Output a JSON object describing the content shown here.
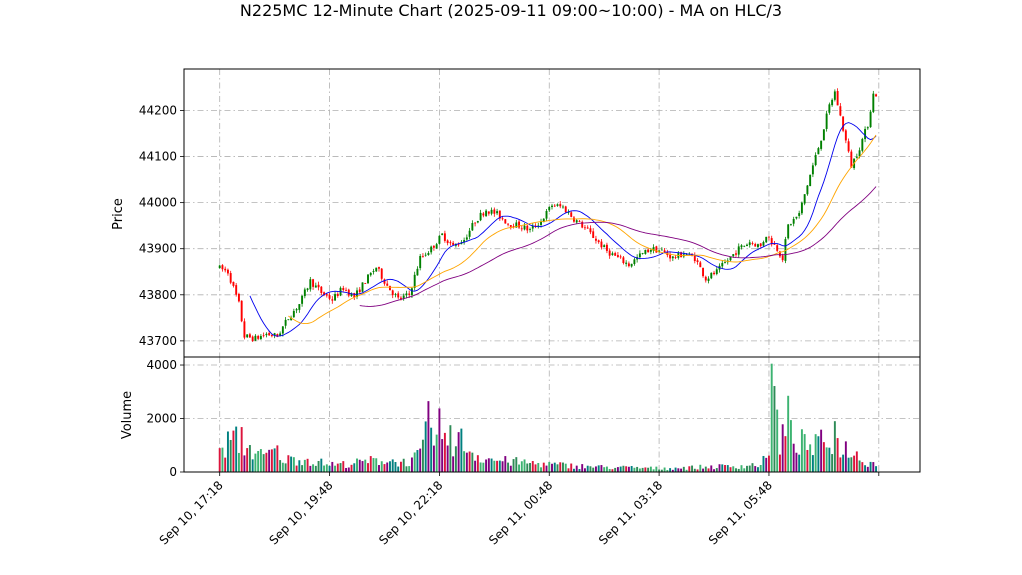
{
  "chart_data": {
    "title": "N225MC 12-Minute Chart (2025-09-11 09:00~10:00) - MA on HLC/3",
    "type": "candlestick",
    "price_panel": {
      "ylabel": "Price",
      "ylim": [
        43665,
        44290
      ],
      "yticks": [
        43700,
        43800,
        43900,
        44000,
        44100,
        44200
      ],
      "ytick_labels": [
        "43700",
        "43800",
        "43900",
        "44000",
        "44100",
        "44200"
      ],
      "grid": true
    },
    "volume_panel": {
      "ylabel": "Volume",
      "ylim": [
        0,
        4300
      ],
      "yticks": [
        0,
        2000,
        4000
      ],
      "ytick_labels": [
        "0",
        "2000",
        "4000"
      ],
      "grid": true
    },
    "x_axis": {
      "range": [
        -13,
        255
      ],
      "ticks": [
        0,
        40,
        80,
        120,
        160,
        200,
        240
      ],
      "tick_labels": [
        "Sep 10, 17:18",
        "Sep 10, 19:48",
        "Sep 10, 22:18",
        "Sep 11, 00:48",
        "Sep 11, 03:18",
        "Sep 11, 05:48",
        ""
      ]
    },
    "bar_count": 240,
    "price_anchors": [
      [
        0,
        43860
      ],
      [
        4,
        43850
      ],
      [
        8,
        43780
      ],
      [
        10,
        43710
      ],
      [
        14,
        43705
      ],
      [
        18,
        43715
      ],
      [
        22,
        43710
      ],
      [
        26,
        43750
      ],
      [
        30,
        43780
      ],
      [
        34,
        43830
      ],
      [
        38,
        43805
      ],
      [
        42,
        43790
      ],
      [
        46,
        43815
      ],
      [
        50,
        43795
      ],
      [
        54,
        43830
      ],
      [
        58,
        43860
      ],
      [
        62,
        43820
      ],
      [
        66,
        43790
      ],
      [
        70,
        43800
      ],
      [
        74,
        43880
      ],
      [
        78,
        43900
      ],
      [
        82,
        43930
      ],
      [
        86,
        43905
      ],
      [
        90,
        43920
      ],
      [
        94,
        43960
      ],
      [
        98,
        43985
      ],
      [
        102,
        43975
      ],
      [
        106,
        43955
      ],
      [
        110,
        43950
      ],
      [
        114,
        43940
      ],
      [
        118,
        43960
      ],
      [
        122,
        43995
      ],
      [
        126,
        43990
      ],
      [
        130,
        43965
      ],
      [
        134,
        43945
      ],
      [
        138,
        43920
      ],
      [
        142,
        43895
      ],
      [
        146,
        43880
      ],
      [
        150,
        43865
      ],
      [
        154,
        43885
      ],
      [
        158,
        43900
      ],
      [
        162,
        43895
      ],
      [
        166,
        43880
      ],
      [
        170,
        43890
      ],
      [
        174,
        43880
      ],
      [
        178,
        43835
      ],
      [
        182,
        43850
      ],
      [
        186,
        43875
      ],
      [
        190,
        43900
      ],
      [
        194,
        43915
      ],
      [
        198,
        43905
      ],
      [
        200,
        43930
      ],
      [
        204,
        43900
      ],
      [
        206,
        43880
      ],
      [
        208,
        43950
      ],
      [
        212,
        43975
      ],
      [
        216,
        44060
      ],
      [
        220,
        44140
      ],
      [
        223,
        44210
      ],
      [
        225,
        44240
      ],
      [
        228,
        44160
      ],
      [
        231,
        44080
      ],
      [
        234,
        44120
      ],
      [
        237,
        44170
      ],
      [
        239,
        44235
      ]
    ],
    "ma_lines": [
      {
        "color": "#0000ee",
        "period": 12
      },
      {
        "color": "#ffa500",
        "period": 26
      },
      {
        "color": "#800080",
        "period": 52
      }
    ],
    "candle_colors": {
      "up": "#008000",
      "down": "#ff0000"
    },
    "volume_anchors": [
      [
        0,
        700
      ],
      [
        4,
        1400
      ],
      [
        8,
        1200
      ],
      [
        12,
        900
      ],
      [
        16,
        600
      ],
      [
        20,
        900
      ],
      [
        24,
        500
      ],
      [
        30,
        550
      ],
      [
        36,
        400
      ],
      [
        42,
        300
      ],
      [
        48,
        350
      ],
      [
        54,
        450
      ],
      [
        60,
        500
      ],
      [
        66,
        400
      ],
      [
        70,
        450
      ],
      [
        74,
        900
      ],
      [
        76,
        2200
      ],
      [
        78,
        1500
      ],
      [
        80,
        1000
      ],
      [
        84,
        1200
      ],
      [
        88,
        1300
      ],
      [
        92,
        800
      ],
      [
        96,
        600
      ],
      [
        100,
        500
      ],
      [
        104,
        450
      ],
      [
        110,
        400
      ],
      [
        116,
        350
      ],
      [
        122,
        300
      ],
      [
        130,
        250
      ],
      [
        140,
        200
      ],
      [
        150,
        180
      ],
      [
        160,
        150
      ],
      [
        170,
        180
      ],
      [
        180,
        220
      ],
      [
        190,
        250
      ],
      [
        196,
        300
      ],
      [
        200,
        600
      ],
      [
        202,
        2800
      ],
      [
        204,
        1200
      ],
      [
        206,
        1800
      ],
      [
        210,
        1300
      ],
      [
        216,
        1000
      ],
      [
        222,
        1400
      ],
      [
        226,
        1100
      ],
      [
        232,
        700
      ],
      [
        236,
        400
      ],
      [
        239,
        350
      ]
    ],
    "volume_spikes": [
      [
        201,
        4050
      ],
      [
        207,
        2850
      ],
      [
        76,
        2650
      ],
      [
        80,
        2380
      ],
      [
        84,
        1750
      ],
      [
        8,
        1680
      ],
      [
        224,
        1900
      ]
    ],
    "volume_bar_palette": [
      "#008080",
      "#2e8b57",
      "#800080",
      "#dc143c",
      "#3cb371"
    ]
  }
}
